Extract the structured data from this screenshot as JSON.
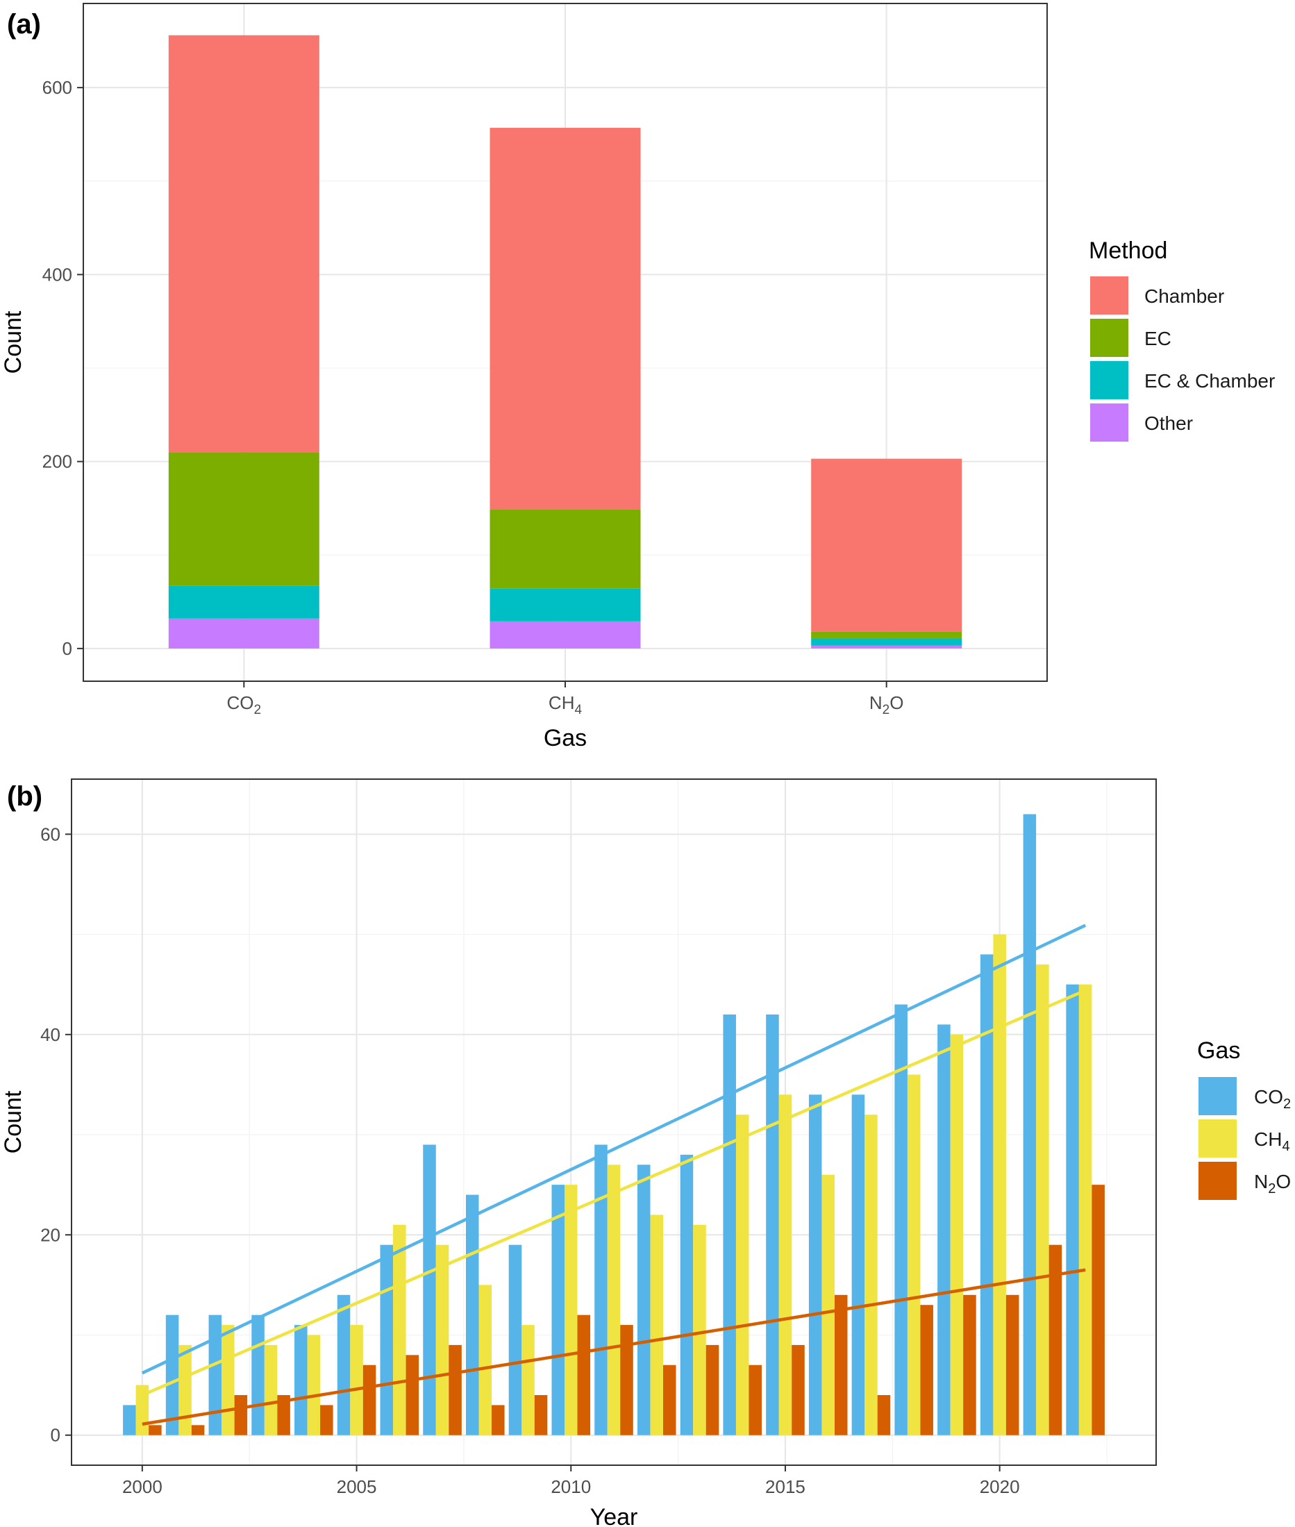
{
  "chart_data": [
    {
      "panel": "(a)",
      "type": "bar",
      "stacked": true,
      "xlabel": "Gas",
      "ylabel": "Count",
      "ylim": [
        -35,
        690
      ],
      "yticks": [
        0,
        200,
        400,
        600
      ],
      "categories": [
        {
          "base": "CO",
          "sub": "2"
        },
        {
          "base": "CH",
          "sub": "4"
        },
        {
          "base": "N",
          "sub": "2",
          "tail": "O"
        }
      ],
      "legend_title": "Method",
      "legend_position": "right",
      "series": [
        {
          "name": "Other",
          "color": "#C77CFF",
          "values": [
            32,
            29,
            3
          ]
        },
        {
          "name": "EC & Chamber",
          "color": "#00BFC4",
          "values": [
            35,
            35,
            8
          ]
        },
        {
          "name": "EC",
          "color": "#7CAE00",
          "values": [
            143,
            85,
            7
          ]
        },
        {
          "name": "Chamber",
          "color": "#F8766D",
          "values": [
            446,
            408,
            185
          ]
        }
      ],
      "legend_order": [
        "Chamber",
        "EC",
        "EC & Chamber",
        "Other"
      ]
    },
    {
      "panel": "(b)",
      "type": "bar",
      "grouped": true,
      "xlabel": "Year",
      "ylabel": "Count",
      "xlim": [
        1998.35,
        2023.65
      ],
      "ylim": [
        -3,
        65.5
      ],
      "xticks": [
        2000,
        2005,
        2010,
        2015,
        2020
      ],
      "yticks": [
        0,
        20,
        40,
        60
      ],
      "years": [
        2000,
        2001,
        2002,
        2003,
        2004,
        2005,
        2006,
        2007,
        2008,
        2009,
        2010,
        2011,
        2012,
        2013,
        2014,
        2015,
        2016,
        2017,
        2018,
        2019,
        2020,
        2021,
        2022
      ],
      "legend_title": "Gas",
      "legend_position": "right",
      "series": [
        {
          "name": {
            "base": "CO",
            "sub": "2"
          },
          "color": "#56B4E9",
          "values": [
            3,
            12,
            12,
            12,
            11,
            14,
            19,
            29,
            24,
            19,
            25,
            29,
            27,
            28,
            42,
            42,
            34,
            34,
            43,
            41,
            48,
            62,
            45
          ],
          "trend": [
            6.2,
            50.9
          ]
        },
        {
          "name": {
            "base": "CH",
            "sub": "4"
          },
          "color": "#F0E442",
          "values": [
            5,
            9,
            11,
            9,
            10,
            11,
            21,
            19,
            15,
            11,
            25,
            27,
            22,
            21,
            32,
            34,
            26,
            32,
            36,
            40,
            50,
            47,
            45
          ],
          "trend": [
            4.0,
            44.4
          ]
        },
        {
          "name": {
            "base": "N",
            "sub": "2",
            "tail": "O"
          },
          "color": "#D55E00",
          "values": [
            1,
            1,
            4,
            4,
            3,
            7,
            8,
            9,
            3,
            4,
            12,
            11,
            7,
            9,
            7,
            9,
            14,
            4,
            13,
            14,
            14,
            19,
            25
          ],
          "trend": [
            1.1,
            16.5
          ]
        }
      ]
    }
  ]
}
